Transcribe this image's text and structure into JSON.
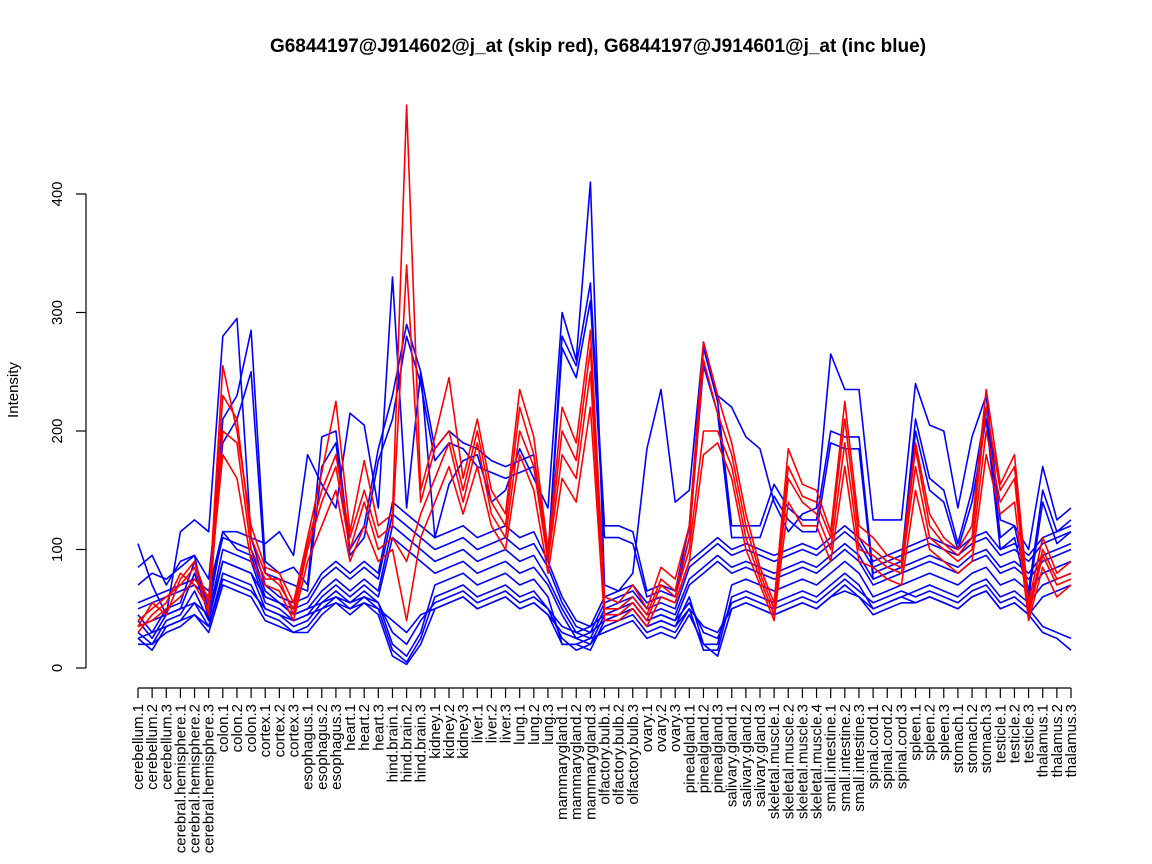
{
  "chart_data": {
    "type": "line",
    "title": "G6844197@J914602@j_at (skip red), G6844197@J914601@j_at (inc blue)",
    "xlabel": "",
    "ylabel": "Intensity",
    "ylim": [
      0,
      400
    ],
    "yticks": [
      0,
      100,
      200,
      300,
      400
    ],
    "grid": false,
    "legend": "none",
    "colors": {
      "skip": "#ff0000",
      "inc": "#0000ff",
      "axis": "#000000"
    },
    "categories": [
      "cerebellum.1",
      "cerebellum.2",
      "cerebellum.3",
      "cerebral.hemisphere.1",
      "cerebral.hemisphere.2",
      "cerebral.hemisphere.3",
      "colon.1",
      "colon.2",
      "colon.3",
      "cortex.1",
      "cortex.2",
      "cortex.3",
      "esophagus.1",
      "esophagus.2",
      "esophagus.3",
      "heart.1",
      "heart.2",
      "heart.3",
      "hind.brain.1",
      "hind.brain.2",
      "hind.brain.3",
      "kidney.1",
      "kidney.2",
      "kidney.3",
      "liver.1",
      "liver.2",
      "liver.3",
      "lung.1",
      "lung.2",
      "lung.3",
      "mammarygland.1",
      "mammarygland.2",
      "mammarygland.3",
      "olfactory.bulb.1",
      "olfactory.bulb.2",
      "olfactory.bulb.3",
      "ovary.1",
      "ovary.2",
      "ovary.3",
      "pinealgland.1",
      "pinealgland.2",
      "pinealgland.3",
      "salivary.gland.1",
      "salivary.gland.2",
      "salivary.gland.3",
      "skeletal.muscle.1",
      "skeletal.muscle.2",
      "skeletal.muscle.3",
      "skeletal.muscle.4",
      "small.intestine.1",
      "small.intestine.2",
      "small.intestine.3",
      "spinal.cord.1",
      "spinal.cord.2",
      "spinal.cord.3",
      "spleen.1",
      "spleen.2",
      "spleen.3",
      "stomach.1",
      "stomach.2",
      "stomach.3",
      "testicle.1",
      "testicle.2",
      "testicle.3",
      "thalamus.1",
      "thalamus.2",
      "thalamus.3"
    ],
    "series": [
      {
        "group": "skip",
        "values": [
          35,
          55,
          45,
          75,
          90,
          55,
          255,
          200,
          120,
          85,
          80,
          55,
          110,
          165,
          225,
          115,
          175,
          120,
          130,
          475,
          150,
          195,
          245,
          160,
          210,
          150,
          130,
          235,
          195,
          100,
          220,
          190,
          285,
          60,
          55,
          70,
          50,
          85,
          75,
          120,
          275,
          230,
          190,
          130,
          85,
          55,
          185,
          155,
          150,
          115,
          225,
          120,
          110,
          95,
          90,
          190,
          130,
          110,
          100,
          120,
          235,
          155,
          180,
          55,
          110,
          80,
          90
        ]
      },
      {
        "group": "skip",
        "values": [
          30,
          45,
          55,
          80,
          70,
          50,
          230,
          210,
          110,
          80,
          70,
          50,
          105,
          150,
          180,
          110,
          150,
          110,
          120,
          340,
          140,
          185,
          200,
          150,
          200,
          140,
          120,
          220,
          180,
          95,
          200,
          175,
          270,
          50,
          50,
          60,
          45,
          75,
          65,
          110,
          260,
          215,
          180,
          120,
          80,
          50,
          170,
          145,
          140,
          110,
          210,
          110,
          100,
          90,
          85,
          185,
          120,
          105,
          95,
          110,
          220,
          150,
          170,
          50,
          100,
          75,
          80
        ]
      },
      {
        "group": "skip",
        "values": [
          40,
          50,
          60,
          70,
          85,
          45,
          200,
          190,
          100,
          75,
          75,
          45,
          100,
          140,
          170,
          100,
          140,
          100,
          110,
          90,
          130,
          160,
          190,
          140,
          190,
          130,
          110,
          200,
          170,
          90,
          180,
          160,
          250,
          45,
          45,
          55,
          40,
          70,
          60,
          100,
          200,
          200,
          170,
          110,
          75,
          45,
          160,
          140,
          130,
          100,
          190,
          100,
          95,
          85,
          80,
          170,
          110,
          100,
          90,
          100,
          200,
          140,
          160,
          45,
          95,
          70,
          75
        ]
      },
      {
        "group": "skip",
        "values": [
          35,
          40,
          50,
          60,
          75,
          60,
          180,
          160,
          90,
          70,
          65,
          40,
          90,
          120,
          150,
          90,
          120,
          90,
          100,
          40,
          110,
          140,
          170,
          130,
          170,
          120,
          100,
          180,
          150,
          80,
          160,
          140,
          220,
          40,
          40,
          50,
          35,
          60,
          55,
          90,
          180,
          190,
          160,
          100,
          70,
          40,
          140,
          120,
          120,
          90,
          170,
          90,
          85,
          75,
          70,
          150,
          100,
          90,
          80,
          90,
          180,
          130,
          140,
          40,
          85,
          60,
          70
        ]
      },
      {
        "group": "inc",
        "values": [
          105,
          70,
          45,
          115,
          125,
          115,
          280,
          295,
          110,
          105,
          115,
          95,
          180,
          155,
          135,
          215,
          205,
          135,
          330,
          135,
          250,
          110,
          155,
          175,
          180,
          140,
          150,
          185,
          160,
          135,
          300,
          260,
          410,
          70,
          65,
          80,
          185,
          235,
          140,
          150,
          275,
          230,
          220,
          195,
          185,
          140,
          115,
          130,
          135,
          265,
          235,
          235,
          125,
          125,
          125,
          240,
          205,
          200,
          135,
          195,
          230,
          125,
          120,
          100,
          170,
          125,
          135
        ]
      },
      {
        "group": "inc",
        "values": [
          85,
          95,
          70,
          90,
          95,
          40,
          210,
          230,
          285,
          90,
          80,
          85,
          70,
          195,
          200,
          100,
          120,
          185,
          230,
          290,
          250,
          185,
          200,
          190,
          185,
          175,
          170,
          175,
          180,
          95,
          280,
          255,
          325,
          120,
          120,
          115,
          65,
          70,
          65,
          120,
          270,
          225,
          120,
          120,
          120,
          155,
          135,
          125,
          125,
          200,
          195,
          195,
          80,
          85,
          90,
          210,
          160,
          150,
          105,
          150,
          220,
          110,
          120,
          65,
          150,
          115,
          125
        ]
      },
      {
        "group": "inc",
        "values": [
          70,
          80,
          75,
          85,
          95,
          75,
          190,
          210,
          250,
          80,
          75,
          70,
          65,
          170,
          190,
          95,
          110,
          175,
          210,
          280,
          240,
          175,
          190,
          185,
          170,
          165,
          160,
          165,
          170,
          90,
          270,
          245,
          310,
          110,
          110,
          105,
          60,
          65,
          60,
          110,
          255,
          215,
          110,
          110,
          110,
          145,
          125,
          115,
          115,
          190,
          185,
          185,
          75,
          80,
          85,
          200,
          150,
          140,
          100,
          140,
          210,
          100,
          110,
          60,
          140,
          105,
          115
        ]
      },
      {
        "group": "inc",
        "values": [
          55,
          60,
          65,
          70,
          75,
          65,
          115,
          115,
          110,
          70,
          60,
          55,
          60,
          80,
          90,
          80,
          90,
          80,
          140,
          130,
          120,
          110,
          115,
          120,
          110,
          115,
          120,
          110,
          115,
          90,
          60,
          40,
          35,
          60,
          65,
          70,
          55,
          60,
          55,
          90,
          100,
          110,
          100,
          105,
          100,
          95,
          100,
          105,
          100,
          110,
          120,
          110,
          90,
          95,
          100,
          105,
          110,
          105,
          100,
          110,
          115,
          100,
          105,
          95,
          110,
          115,
          120
        ]
      },
      {
        "group": "inc",
        "values": [
          50,
          55,
          60,
          65,
          70,
          60,
          110,
          105,
          100,
          65,
          55,
          50,
          55,
          75,
          85,
          75,
          85,
          75,
          130,
          120,
          110,
          100,
          105,
          110,
          100,
          105,
          110,
          100,
          105,
          85,
          55,
          35,
          30,
          55,
          60,
          65,
          50,
          55,
          50,
          85,
          95,
          105,
          95,
          100,
          95,
          90,
          95,
          100,
          95,
          105,
          115,
          105,
          85,
          90,
          95,
          100,
          105,
          100,
          95,
          105,
          110,
          95,
          100,
          90,
          105,
          110,
          115
        ]
      },
      {
        "group": "inc",
        "values": [
          45,
          30,
          50,
          55,
          90,
          50,
          115,
          100,
          95,
          60,
          55,
          45,
          50,
          65,
          75,
          65,
          75,
          65,
          120,
          110,
          100,
          90,
          95,
          100,
          90,
          95,
          100,
          90,
          95,
          75,
          50,
          30,
          25,
          50,
          55,
          60,
          45,
          50,
          45,
          75,
          85,
          95,
          85,
          90,
          85,
          80,
          85,
          90,
          85,
          95,
          105,
          95,
          75,
          80,
          85,
          90,
          95,
          90,
          85,
          95,
          100,
          85,
          90,
          80,
          95,
          100,
          105
        ]
      },
      {
        "group": "inc",
        "values": [
          40,
          25,
          45,
          50,
          80,
          45,
          100,
          95,
          90,
          55,
          50,
          40,
          45,
          60,
          70,
          60,
          70,
          60,
          110,
          100,
          90,
          80,
          85,
          90,
          80,
          85,
          90,
          80,
          85,
          70,
          45,
          25,
          20,
          45,
          50,
          55,
          40,
          45,
          40,
          70,
          80,
          90,
          80,
          85,
          80,
          75,
          80,
          85,
          80,
          90,
          100,
          90,
          70,
          75,
          80,
          85,
          90,
          85,
          80,
          90,
          95,
          80,
          85,
          75,
          90,
          95,
          100
        ]
      },
      {
        "group": "inc",
        "values": [
          30,
          20,
          40,
          45,
          65,
          40,
          90,
          85,
          80,
          50,
          45,
          35,
          40,
          55,
          65,
          55,
          65,
          55,
          20,
          10,
          30,
          70,
          75,
          80,
          70,
          75,
          80,
          70,
          75,
          60,
          20,
          20,
          15,
          40,
          45,
          50,
          35,
          40,
          35,
          60,
          20,
          20,
          70,
          75,
          70,
          65,
          70,
          75,
          70,
          80,
          90,
          80,
          60,
          65,
          70,
          75,
          80,
          75,
          70,
          80,
          85,
          70,
          75,
          65,
          80,
          85,
          90
        ]
      },
      {
        "group": "inc",
        "values": [
          25,
          15,
          35,
          40,
          55,
          35,
          80,
          75,
          70,
          45,
          40,
          30,
          35,
          50,
          60,
          50,
          60,
          50,
          15,
          5,
          25,
          60,
          65,
          70,
          60,
          65,
          70,
          60,
          65,
          50,
          25,
          15,
          20,
          35,
          40,
          45,
          30,
          35,
          30,
          50,
          15,
          15,
          60,
          65,
          60,
          55,
          60,
          65,
          60,
          70,
          80,
          70,
          50,
          55,
          60,
          65,
          70,
          65,
          60,
          70,
          75,
          60,
          65,
          55,
          70,
          75,
          80
        ]
      },
      {
        "group": "inc",
        "values": [
          20,
          20,
          30,
          35,
          45,
          30,
          70,
          65,
          60,
          40,
          35,
          30,
          30,
          45,
          55,
          45,
          55,
          45,
          10,
          3,
          20,
          50,
          55,
          60,
          50,
          55,
          60,
          50,
          55,
          45,
          20,
          20,
          25,
          30,
          35,
          40,
          25,
          30,
          25,
          45,
          20,
          10,
          50,
          55,
          50,
          45,
          50,
          55,
          50,
          60,
          70,
          60,
          45,
          50,
          55,
          55,
          60,
          55,
          50,
          60,
          65,
          50,
          55,
          45,
          60,
          65,
          70
        ]
      },
      {
        "group": "inc",
        "values": [
          35,
          40,
          45,
          50,
          55,
          45,
          90,
          85,
          80,
          60,
          55,
          45,
          50,
          55,
          60,
          55,
          60,
          55,
          30,
          20,
          40,
          55,
          60,
          65,
          55,
          60,
          65,
          55,
          60,
          50,
          35,
          30,
          35,
          45,
          50,
          55,
          40,
          45,
          40,
          55,
          30,
          25,
          55,
          60,
          55,
          50,
          55,
          60,
          55,
          65,
          75,
          65,
          55,
          60,
          65,
          60,
          65,
          60,
          55,
          65,
          70,
          55,
          60,
          50,
          35,
          30,
          25
        ]
      },
      {
        "group": "inc",
        "values": [
          25,
          30,
          35,
          40,
          45,
          35,
          75,
          70,
          65,
          50,
          45,
          40,
          45,
          50,
          55,
          50,
          55,
          50,
          40,
          30,
          45,
          50,
          55,
          60,
          50,
          55,
          60,
          50,
          55,
          45,
          30,
          25,
          30,
          40,
          45,
          50,
          35,
          40,
          35,
          50,
          35,
          30,
          50,
          55,
          50,
          45,
          50,
          55,
          50,
          60,
          65,
          60,
          50,
          55,
          60,
          55,
          60,
          55,
          50,
          60,
          65,
          50,
          55,
          45,
          30,
          25,
          15
        ]
      }
    ]
  }
}
